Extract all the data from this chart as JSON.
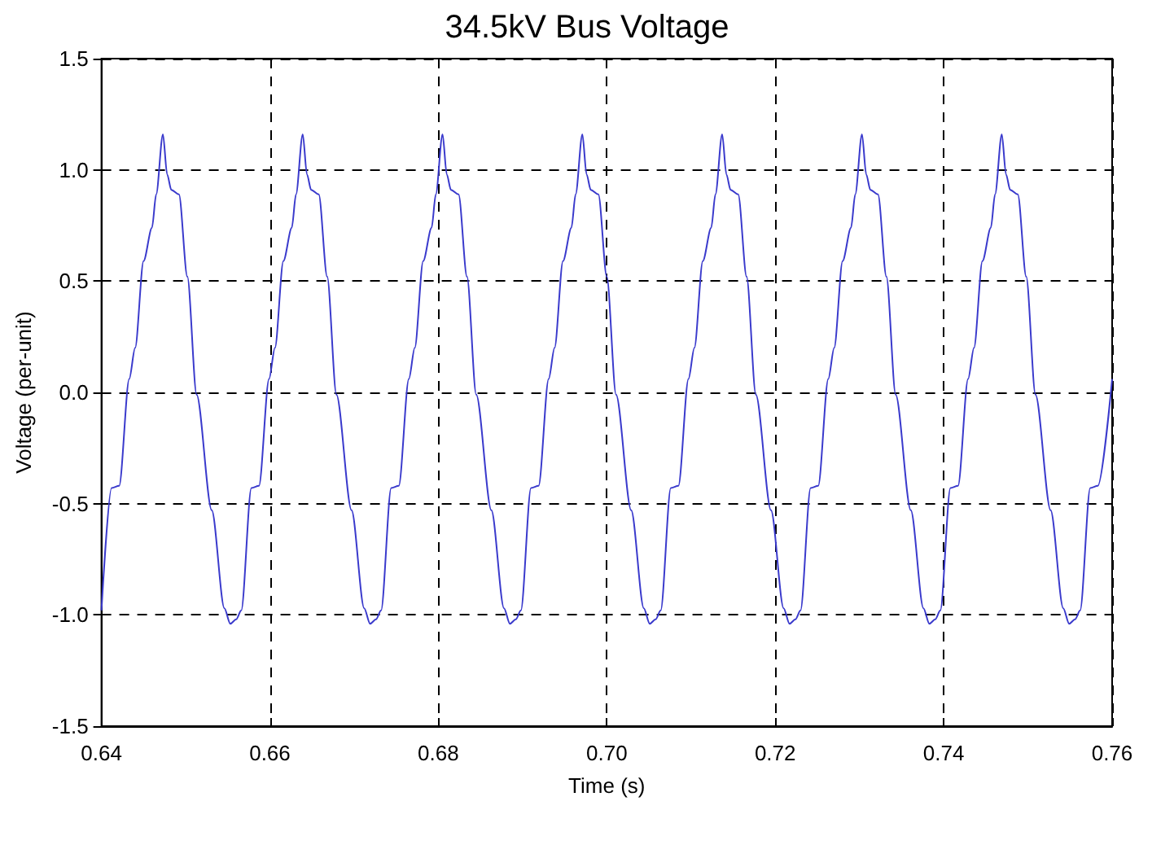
{
  "chart_data": {
    "type": "line",
    "title": "34.5kV Bus Voltage",
    "xlabel": "Time (s)",
    "ylabel": "Voltage (per-unit)",
    "xlim": [
      0.64,
      0.76
    ],
    "xticks": [
      0.64,
      0.66,
      0.68,
      {
        "value": 0.7,
        "label": "0.70"
      },
      0.72,
      0.74,
      0.76
    ],
    "ylim": [
      -1.5,
      1.5
    ],
    "yticks": [
      -1.5,
      {
        "value": -1,
        "label": "-1.0"
      },
      -0.5,
      {
        "value": 0,
        "label": "0.0"
      },
      0.5,
      {
        "value": 1,
        "label": "1.0"
      },
      1.5
    ],
    "grid": true,
    "marker": "none",
    "line_style": "solid",
    "series": [
      {
        "color": "#3a3acc",
        "x": [
          0.64,
          0.6412,
          0.6421,
          0.6433,
          0.644,
          0.645,
          0.646,
          0.6465,
          0.6473,
          0.6478,
          0.6483,
          0.6492,
          0.6502,
          0.6513,
          0.6531,
          0.6546,
          0.6553,
          0.656,
          0.6566,
          0.6578,
          0.6587,
          0.6599,
          0.6606,
          0.6616,
          0.6626,
          0.6631,
          0.6639,
          0.6644,
          0.6649,
          0.6658,
          0.6668,
          0.6679,
          0.6697,
          0.6712,
          0.6719,
          0.6726,
          0.6732,
          0.6744,
          0.6753,
          0.6765,
          0.6772,
          0.6782,
          0.6792,
          0.6797,
          0.6805,
          0.681,
          0.6815,
          0.6824,
          0.6834,
          0.6845,
          0.6863,
          0.6878,
          0.6885,
          0.6892,
          0.6898,
          0.691,
          0.6919,
          0.6931,
          0.6938,
          0.6948,
          0.6958,
          0.6963,
          0.6971,
          0.6976,
          0.6981,
          0.699,
          0.7,
          0.7011,
          0.7029,
          0.7044,
          0.7051,
          0.7058,
          0.7064,
          0.7076,
          0.7085,
          0.7097,
          0.7104,
          0.7114,
          0.7124,
          0.7129,
          0.7137,
          0.7142,
          0.7147,
          0.7156,
          0.7166,
          0.7177,
          0.7195,
          0.721,
          0.7217,
          0.7224,
          0.723,
          0.7242,
          0.7251,
          0.7263,
          0.727,
          0.728,
          0.729,
          0.7295,
          0.7303,
          0.7308,
          0.7313,
          0.7322,
          0.7332,
          0.7343,
          0.7361,
          0.7376,
          0.7383,
          0.739,
          0.7396,
          0.7408,
          0.7417,
          0.7429,
          0.7436,
          0.7446,
          0.7456,
          0.7461,
          0.7469,
          0.7474,
          0.7479,
          0.7488,
          0.7498,
          0.7509,
          0.7527,
          0.7542,
          0.7549,
          0.7556,
          0.7562,
          0.7574,
          0.7583,
          0.76
        ],
        "values": [
          -0.98,
          -0.43,
          -0.42,
          0.06,
          0.2,
          0.59,
          0.74,
          0.89,
          1.16,
          0.98,
          0.91,
          0.89,
          0.52,
          -0.01,
          -0.53,
          -0.97,
          -1.04,
          -1.02,
          -0.98,
          -0.43,
          -0.42,
          0.06,
          0.2,
          0.59,
          0.74,
          0.89,
          1.16,
          0.98,
          0.91,
          0.89,
          0.52,
          -0.01,
          -0.53,
          -0.97,
          -1.04,
          -1.02,
          -0.98,
          -0.43,
          -0.42,
          0.06,
          0.2,
          0.59,
          0.74,
          0.89,
          1.16,
          0.98,
          0.91,
          0.89,
          0.52,
          -0.01,
          -0.53,
          -0.97,
          -1.04,
          -1.02,
          -0.98,
          -0.43,
          -0.42,
          0.06,
          0.2,
          0.59,
          0.74,
          0.89,
          1.16,
          0.98,
          0.91,
          0.89,
          0.52,
          -0.01,
          -0.53,
          -0.97,
          -1.04,
          -1.02,
          -0.98,
          -0.43,
          -0.42,
          0.06,
          0.2,
          0.59,
          0.74,
          0.89,
          1.16,
          0.98,
          0.91,
          0.89,
          0.52,
          -0.01,
          -0.53,
          -0.97,
          -1.04,
          -1.02,
          -0.98,
          -0.43,
          -0.42,
          0.06,
          0.2,
          0.59,
          0.74,
          0.89,
          1.16,
          0.98,
          0.91,
          0.89,
          0.52,
          -0.01,
          -0.53,
          -0.97,
          -1.04,
          -1.02,
          -0.98,
          -0.43,
          -0.42,
          0.06,
          0.2,
          0.59,
          0.74,
          0.89,
          1.16,
          0.98,
          0.91,
          0.89,
          0.52,
          -0.01,
          -0.53,
          -0.97,
          -1.04,
          -1.02,
          -0.98,
          -0.43,
          -0.42,
          0.06
        ]
      }
    ]
  }
}
